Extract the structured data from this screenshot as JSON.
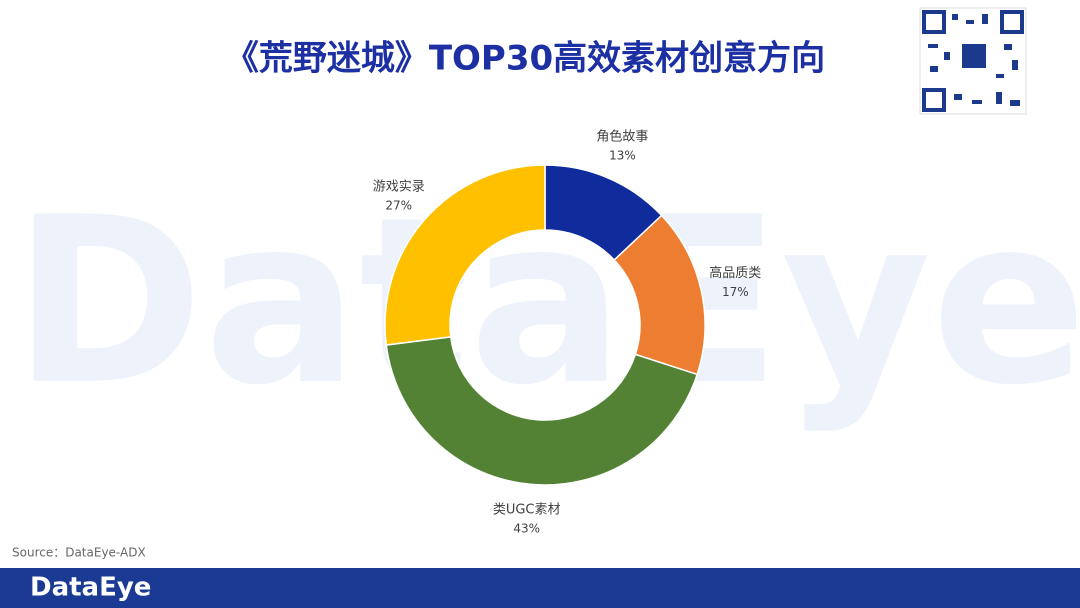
{
  "header": {
    "title": "《荒野迷城》TOP30高效素材创意方向",
    "watermark": "DataEye"
  },
  "chart_data": {
    "type": "donut",
    "categories": [
      "角色故事",
      "高品质类",
      "类UGC素材",
      "游戏实录"
    ],
    "values": [
      13,
      17,
      43,
      27
    ],
    "value_labels": [
      "13%",
      "17%",
      "43%",
      "27%"
    ],
    "colors": [
      "#0f2b9c",
      "#ed7d31",
      "#548235",
      "#ffc000"
    ]
  },
  "footer": {
    "source": "Source：DataEye-ADX",
    "brand": "DataEye"
  }
}
